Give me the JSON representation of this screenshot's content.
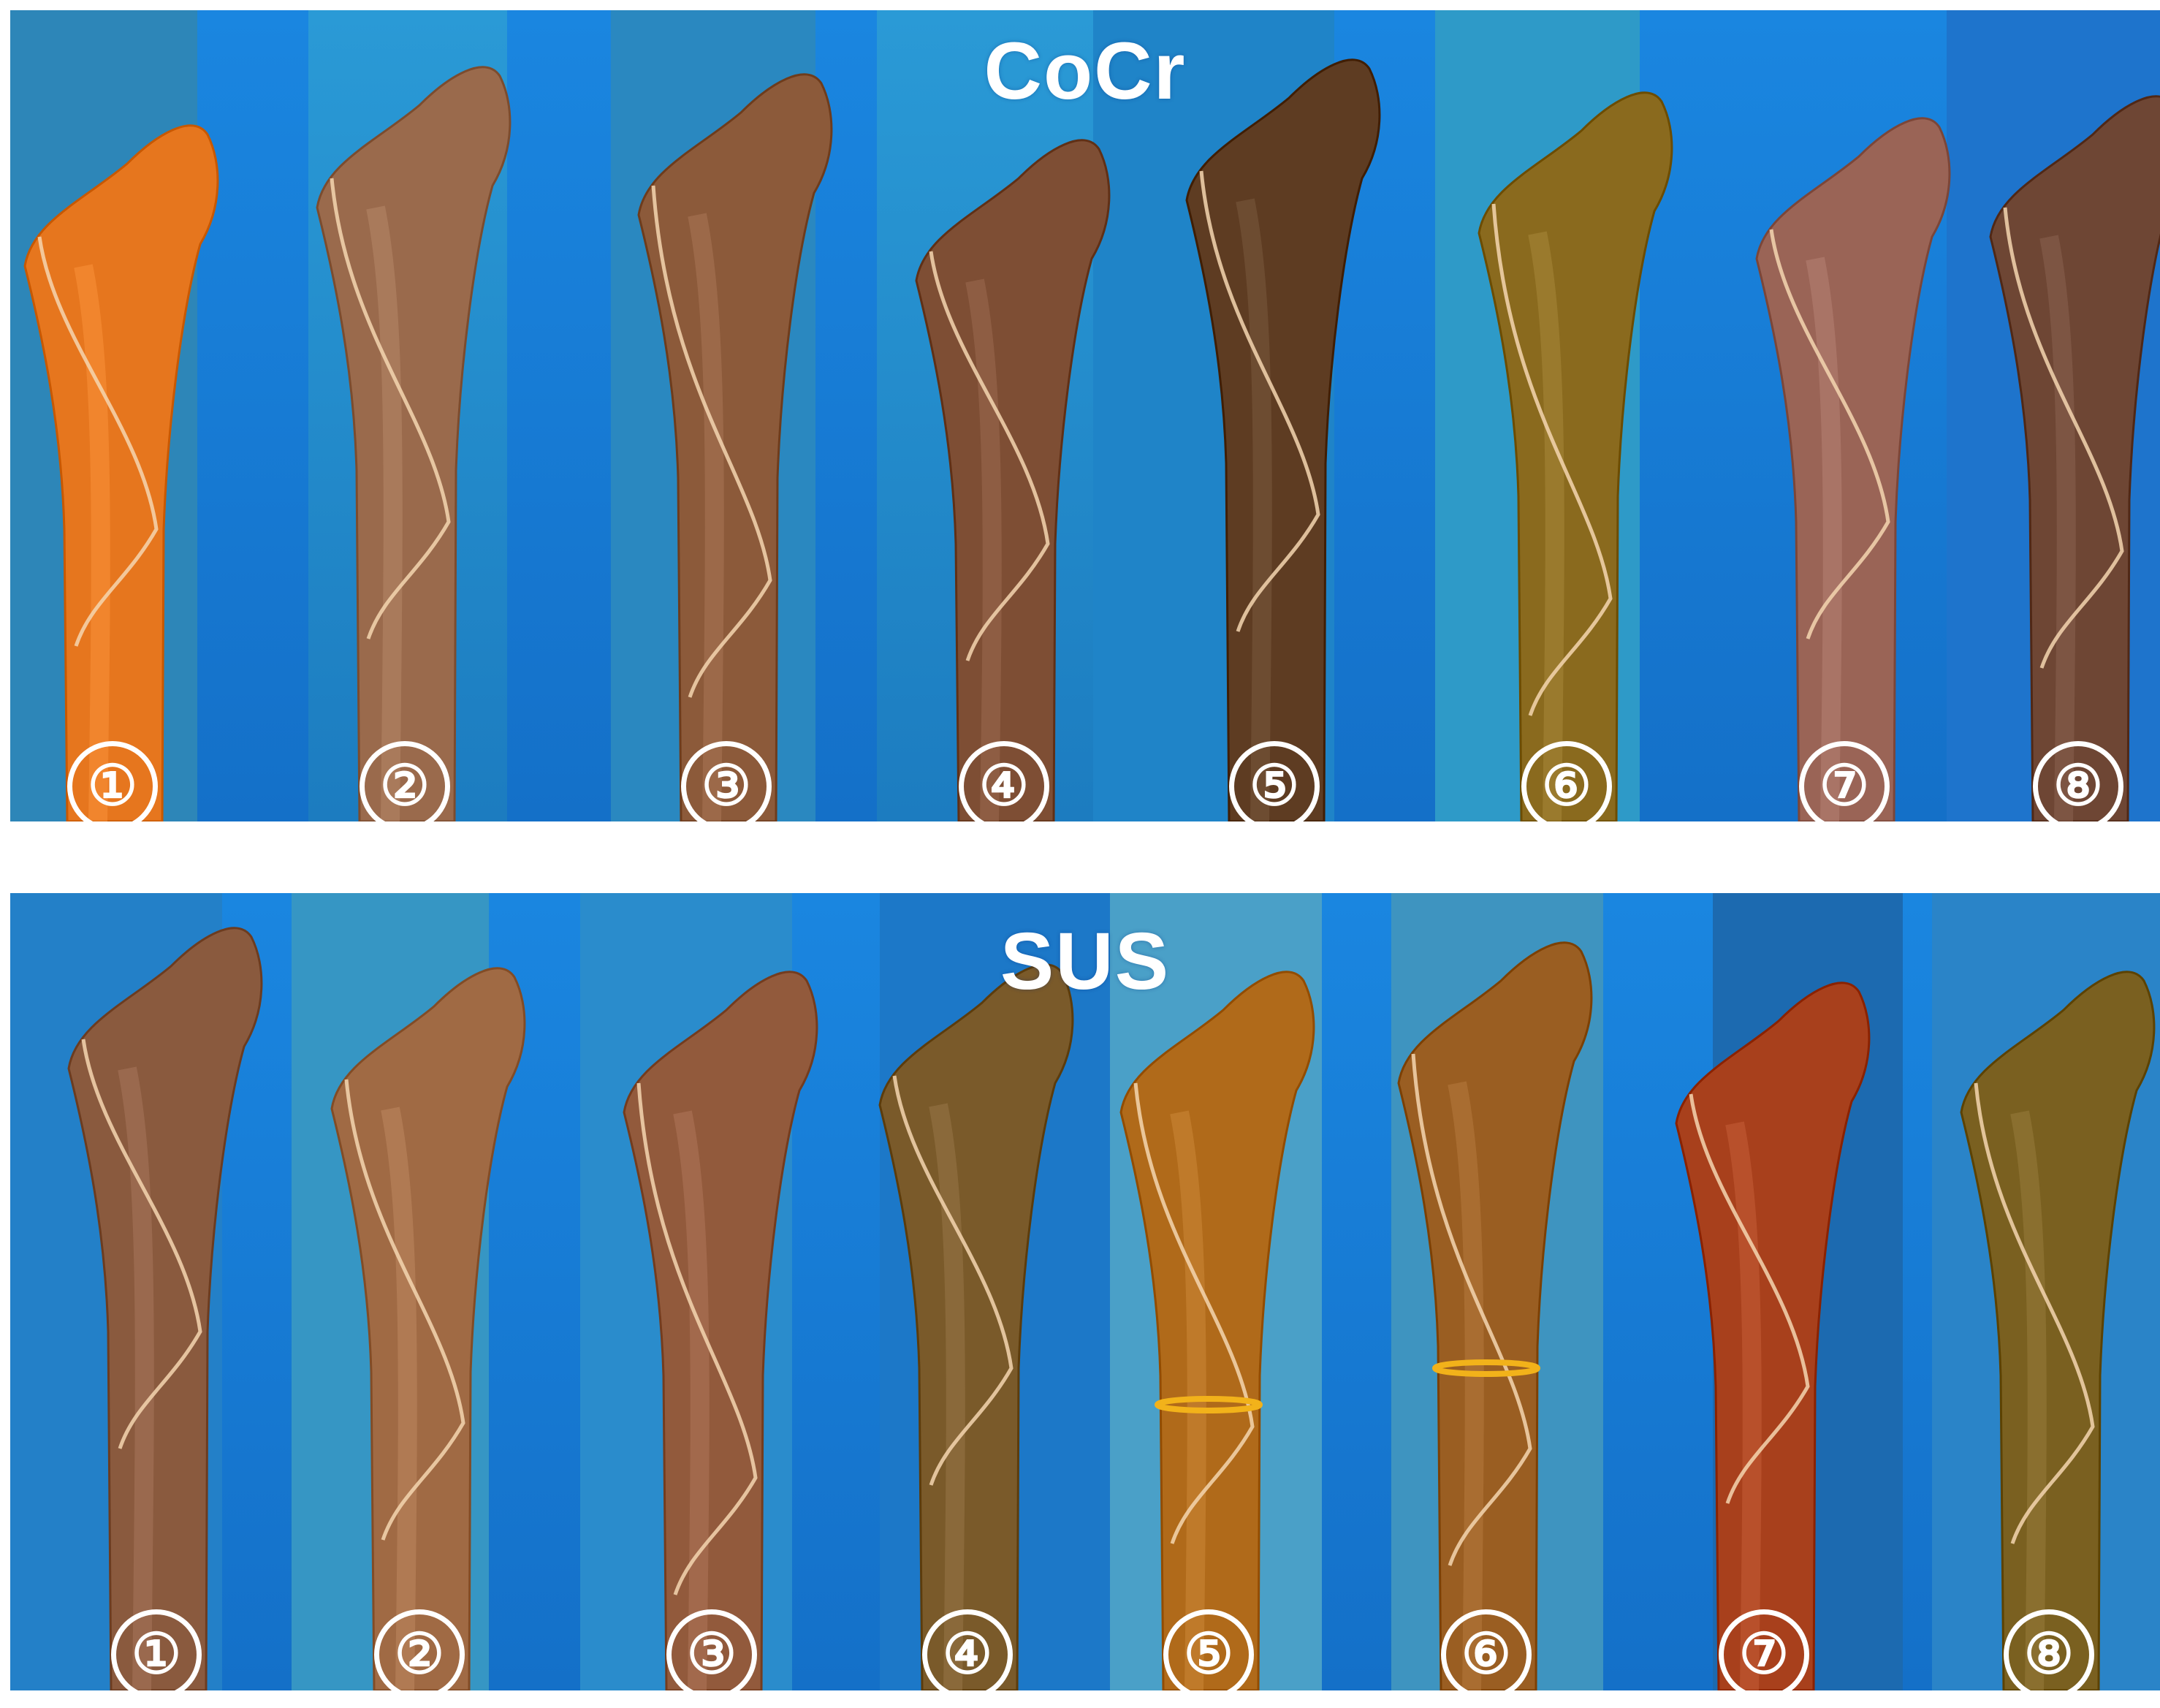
{
  "panels": [
    {
      "label": "CoCr",
      "specimen_numbers": [
        "①",
        "②",
        "③",
        "④",
        "⑤",
        "⑥",
        "⑦",
        "⑧"
      ],
      "colors": {
        "background": "#1b7ed8",
        "bone_1": "#e6761e",
        "bone_2": "#9a6a4c",
        "bone_3": "#8c5a3a",
        "bone_4": "#7e4e34",
        "bone_5": "#5e3c22",
        "bone_6": "#8a6a1e",
        "bone_7": "#9a6456",
        "bone_8": "#6e4634"
      }
    },
    {
      "label": "SUS",
      "specimen_numbers": [
        "①",
        "②",
        "③",
        "④",
        "⑤",
        "⑥",
        "⑦",
        "⑧"
      ],
      "colors": {
        "background": "#1b7ed8",
        "bone_1": "#8a5a3e",
        "bone_2": "#a06a44",
        "bone_3": "#925a3c",
        "bone_4": "#7a5a2a",
        "bone_5": "#b06a1a",
        "bone_6": "#9a5e22",
        "bone_7": "#a8401c",
        "bone_8": "#7a6020"
      }
    }
  ]
}
